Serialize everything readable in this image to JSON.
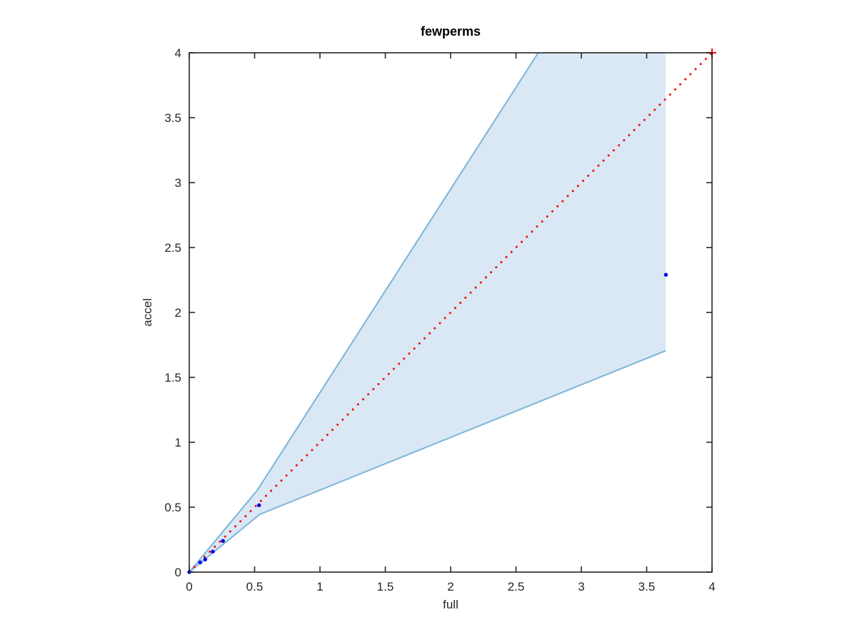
{
  "chart_data": {
    "type": "scatter",
    "title": "fewperms",
    "xlabel": "full",
    "ylabel": "accel",
    "xlim": [
      0,
      4
    ],
    "ylim": [
      0,
      4
    ],
    "xticks": [
      0,
      0.5,
      1,
      1.5,
      2,
      2.5,
      3,
      3.5,
      4
    ],
    "yticks": [
      0,
      0.5,
      1,
      1.5,
      2,
      2.5,
      3,
      3.5,
      4
    ],
    "xtick_labels": [
      "0",
      "0.5",
      "1",
      "1.5",
      "2",
      "2.5",
      "3",
      "3.5",
      "4"
    ],
    "ytick_labels": [
      "0",
      "0.5",
      "1",
      "1.5",
      "2",
      "2.5",
      "3",
      "3.5",
      "4"
    ],
    "grid": false,
    "legend": null,
    "box": true,
    "tick_direction": "in",
    "series": [
      {
        "name": "confidence-band",
        "type": "band",
        "fill_color": "#d9e8f4",
        "edge_color": "#7cb4da",
        "upper": [
          [
            0,
            0
          ],
          [
            0.52,
            0.63
          ],
          [
            2.67,
            4.0
          ]
        ],
        "lower": [
          [
            0,
            0
          ],
          [
            0.54,
            0.445
          ],
          [
            3.645,
            1.705
          ]
        ],
        "close_x": 3.645,
        "close_y_top": 4.0
      },
      {
        "name": "identity-line",
        "type": "line",
        "style": "dotted",
        "color": "#ee1111",
        "x": [
          0,
          4
        ],
        "y": [
          0,
          4
        ],
        "end_marker": "plus",
        "end_marker_point": [
          4,
          4
        ]
      },
      {
        "name": "accel-vs-full-points",
        "type": "scatter",
        "color": "#0000ee",
        "points": [
          [
            0.0,
            0.0
          ],
          [
            0.084,
            0.075
          ],
          [
            0.122,
            0.097
          ],
          [
            0.18,
            0.158
          ],
          [
            0.258,
            0.24
          ],
          [
            0.534,
            0.515
          ],
          [
            3.647,
            2.29
          ]
        ]
      }
    ]
  },
  "colors": {
    "axis": "#262626",
    "background": "#ffffff",
    "band_fill": "#d9e8f4",
    "band_edge": "#7cb4da",
    "identity_red": "#ee1111",
    "point_blue": "#0000ee"
  }
}
